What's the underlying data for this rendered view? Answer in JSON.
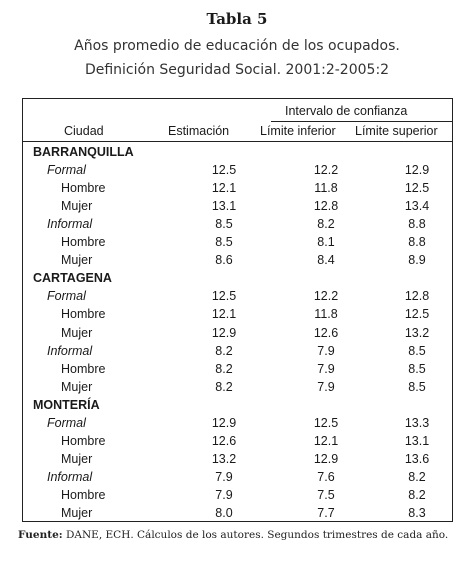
{
  "title": "Tabla 5",
  "subtitle_line1": "Años promedio de educación de los ocupados.",
  "subtitle_line2": "Definición Seguridad Social. 2001:2-2005:2",
  "header": {
    "group": "Intervalo de confianza",
    "col_ciudad": "Ciudad",
    "col_estimacion": "Estimación",
    "col_inferior": "Límite inferior",
    "col_superior": "Límite superior"
  },
  "rows": [
    {
      "label": "BARRANQUILLA",
      "kind": "city",
      "est": "",
      "inf": "",
      "sup": ""
    },
    {
      "label": "Formal",
      "kind": "sector",
      "est": "12.5",
      "inf": "12.2",
      "sup": "12.9"
    },
    {
      "label": "Hombre",
      "kind": "sub",
      "est": "12.1",
      "inf": "11.8",
      "sup": "12.5"
    },
    {
      "label": "Mujer",
      "kind": "sub",
      "est": "13.1",
      "inf": "12.8",
      "sup": "13.4"
    },
    {
      "label": "Informal",
      "kind": "sector",
      "est": "8.5",
      "inf": "8.2",
      "sup": "8.8"
    },
    {
      "label": "Hombre",
      "kind": "sub",
      "est": "8.5",
      "inf": "8.1",
      "sup": "8.8"
    },
    {
      "label": "Mujer",
      "kind": "sub",
      "est": "8.6",
      "inf": "8.4",
      "sup": "8.9"
    },
    {
      "label": "CARTAGENA",
      "kind": "city",
      "est": "",
      "inf": "",
      "sup": ""
    },
    {
      "label": "Formal",
      "kind": "sector",
      "est": "12.5",
      "inf": "12.2",
      "sup": "12.8"
    },
    {
      "label": "Hombre",
      "kind": "sub",
      "est": "12.1",
      "inf": "11.8",
      "sup": "12.5"
    },
    {
      "label": "Mujer",
      "kind": "sub",
      "est": "12.9",
      "inf": "12.6",
      "sup": "13.2"
    },
    {
      "label": "Informal",
      "kind": "sector",
      "est": "8.2",
      "inf": "7.9",
      "sup": "8.5"
    },
    {
      "label": "Hombre",
      "kind": "sub",
      "est": "8.2",
      "inf": "7.9",
      "sup": "8.5"
    },
    {
      "label": "Mujer",
      "kind": "sub",
      "est": "8.2",
      "inf": "7.9",
      "sup": "8.5"
    },
    {
      "label": "MONTERÍA",
      "kind": "city",
      "est": "",
      "inf": "",
      "sup": ""
    },
    {
      "label": "Formal",
      "kind": "sector",
      "est": "12.9",
      "inf": "12.5",
      "sup": "13.3"
    },
    {
      "label": "Hombre",
      "kind": "sub",
      "est": "12.6",
      "inf": "12.1",
      "sup": "13.1"
    },
    {
      "label": "Mujer",
      "kind": "sub",
      "est": "13.2",
      "inf": "12.9",
      "sup": "13.6"
    },
    {
      "label": "Informal",
      "kind": "sector",
      "est": "7.9",
      "inf": "7.6",
      "sup": "8.2"
    },
    {
      "label": "Hombre",
      "kind": "sub",
      "est": "7.9",
      "inf": "7.5",
      "sup": "8.2"
    },
    {
      "label": "Mujer",
      "kind": "sub",
      "est": "8.0",
      "inf": "7.7",
      "sup": "8.3"
    }
  ],
  "source_label": "Fuente:",
  "source_text": "DANE, ECH. Cálculos de los autores. Segundos trimestres de cada año."
}
